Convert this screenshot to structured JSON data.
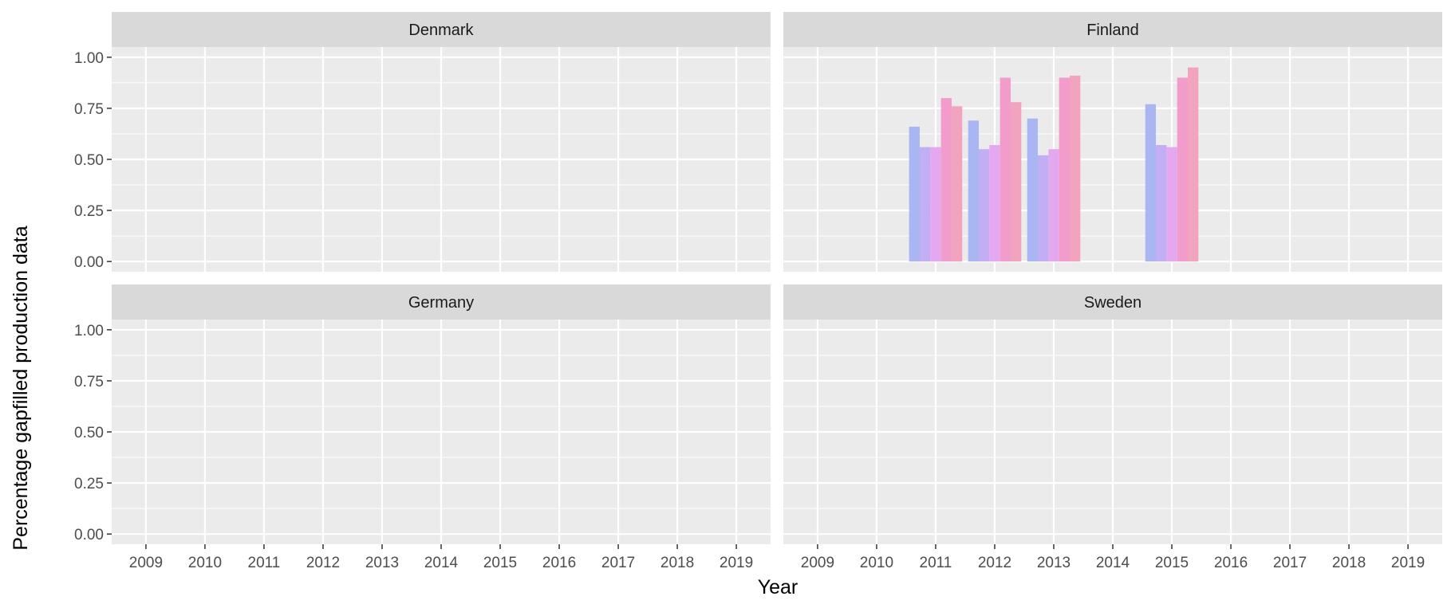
{
  "chart_data": {
    "type": "bar",
    "xlabel": "Year",
    "ylabel": "Percentage gapfilled production data",
    "x_ticks": [
      "2009",
      "2010",
      "2011",
      "2012",
      "2013",
      "2014",
      "2015",
      "2016",
      "2017",
      "2018",
      "2019"
    ],
    "y_ticks": [
      "0.00",
      "0.25",
      "0.50",
      "0.75",
      "1.00"
    ],
    "xlim": [
      2008.42,
      2019.58
    ],
    "ylim": [
      -0.05,
      1.05
    ],
    "bar_colors": [
      "#aab6f2",
      "#c2aef5",
      "#e4a8f0",
      "#f29ccc",
      "#f2a3bd"
    ],
    "panels": [
      {
        "name": "Denmark",
        "bars": []
      },
      {
        "name": "Finland",
        "bars": [
          {
            "year": 2011,
            "values": [
              0.66,
              0.56,
              0.56,
              0.8,
              0.76
            ]
          },
          {
            "year": 2012,
            "values": [
              0.69,
              0.55,
              0.57,
              0.9,
              0.78
            ]
          },
          {
            "year": 2013,
            "values": [
              0.7,
              0.52,
              0.55,
              0.9,
              0.91
            ]
          },
          {
            "year": 2015,
            "values": [
              0.77,
              0.57,
              0.56,
              0.9,
              0.95
            ]
          }
        ]
      },
      {
        "name": "Germany",
        "bars": []
      },
      {
        "name": "Sweden",
        "bars": []
      }
    ]
  }
}
